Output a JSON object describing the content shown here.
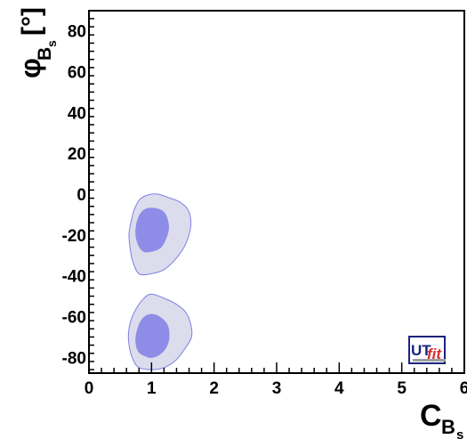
{
  "chart_data": {
    "type": "contour",
    "xlabel": {
      "main": "C",
      "sub": "B",
      "subsub": "s"
    },
    "ylabel": {
      "main": "φ",
      "sub": "B",
      "subsub": "s",
      "unit": "[°]"
    },
    "xlim": [
      0,
      6
    ],
    "ylim": [
      -88,
      90
    ],
    "x_ticks": [
      "0",
      "1",
      "2",
      "3",
      "4",
      "5",
      "6"
    ],
    "y_ticks": [
      "-80",
      "-60",
      "-40",
      "-20",
      "0",
      "20",
      "40",
      "60",
      "80"
    ],
    "grid": false,
    "regions": [
      {
        "level": "95%",
        "color": "#dcdcec",
        "stroke": "#7f7fe6",
        "points": [
          [
            0.8,
            -39
          ],
          [
            1.0,
            -39
          ],
          [
            1.2,
            -37
          ],
          [
            1.38,
            -32
          ],
          [
            1.52,
            -26
          ],
          [
            1.6,
            -20
          ],
          [
            1.63,
            -14
          ],
          [
            1.59,
            -8
          ],
          [
            1.46,
            -4
          ],
          [
            1.3,
            -2
          ],
          [
            1.1,
            0
          ],
          [
            0.93,
            -0.5
          ],
          [
            0.8,
            -3
          ],
          [
            0.72,
            -8
          ],
          [
            0.67,
            -14
          ],
          [
            0.64,
            -20
          ],
          [
            0.66,
            -27
          ],
          [
            0.7,
            -33
          ]
        ]
      },
      {
        "level": "68%",
        "color": "#8d8de8",
        "stroke": "#8d8de8",
        "points": [
          [
            0.87,
            -28
          ],
          [
            1.0,
            -28
          ],
          [
            1.15,
            -26
          ],
          [
            1.25,
            -20
          ],
          [
            1.27,
            -15
          ],
          [
            1.2,
            -9
          ],
          [
            1.05,
            -7
          ],
          [
            0.9,
            -7.5
          ],
          [
            0.8,
            -11
          ],
          [
            0.75,
            -18
          ],
          [
            0.78,
            -24
          ]
        ]
      },
      {
        "level": "95%",
        "color": "#dcdcec",
        "stroke": "#7f7fe6",
        "points": [
          [
            0.8,
            -85
          ],
          [
            1.0,
            -86
          ],
          [
            1.2,
            -85
          ],
          [
            1.4,
            -81
          ],
          [
            1.55,
            -75
          ],
          [
            1.64,
            -70
          ],
          [
            1.63,
            -64
          ],
          [
            1.55,
            -58
          ],
          [
            1.4,
            -54
          ],
          [
            1.2,
            -51
          ],
          [
            0.99,
            -49
          ],
          [
            0.85,
            -52
          ],
          [
            0.74,
            -57
          ],
          [
            0.66,
            -63
          ],
          [
            0.63,
            -70
          ],
          [
            0.66,
            -77
          ],
          [
            0.72,
            -82
          ]
        ]
      },
      {
        "level": "68%",
        "color": "#8d8de8",
        "stroke": "#8d8de8",
        "points": [
          [
            0.88,
            -79
          ],
          [
            1.0,
            -80
          ],
          [
            1.15,
            -78
          ],
          [
            1.25,
            -74
          ],
          [
            1.28,
            -69
          ],
          [
            1.25,
            -64
          ],
          [
            1.12,
            -60
          ],
          [
            0.98,
            -59
          ],
          [
            0.86,
            -61
          ],
          [
            0.78,
            -66
          ],
          [
            0.75,
            -72
          ],
          [
            0.79,
            -77
          ]
        ]
      }
    ]
  },
  "logo": {
    "text_a": "UT",
    "text_b": "fit",
    "color_a": "#1a237e",
    "color_b": "#d32f2f",
    "border": "#1a237e"
  }
}
